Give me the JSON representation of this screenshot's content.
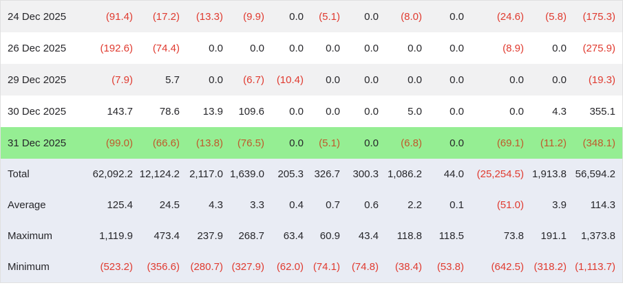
{
  "table": {
    "rows": [
      {
        "label": "24 Dec 2025",
        "row_type": "data",
        "highlighted": false,
        "values": [
          "(91.4)",
          "(17.2)",
          "(13.3)",
          "(9.9)",
          "0.0",
          "(5.1)",
          "0.0",
          "(8.0)",
          "0.0",
          "(24.6)",
          "(5.8)",
          "(175.3)"
        ]
      },
      {
        "label": "26 Dec 2025",
        "row_type": "data",
        "highlighted": false,
        "values": [
          "(192.6)",
          "(74.4)",
          "0.0",
          "0.0",
          "0.0",
          "0.0",
          "0.0",
          "0.0",
          "0.0",
          "(8.9)",
          "0.0",
          "(275.9)"
        ]
      },
      {
        "label": "29 Dec 2025",
        "row_type": "data",
        "highlighted": false,
        "values": [
          "(7.9)",
          "5.7",
          "0.0",
          "(6.7)",
          "(10.4)",
          "0.0",
          "0.0",
          "0.0",
          "0.0",
          "0.0",
          "0.0",
          "(19.3)"
        ]
      },
      {
        "label": "30 Dec 2025",
        "row_type": "data",
        "highlighted": false,
        "values": [
          "143.7",
          "78.6",
          "13.9",
          "109.6",
          "0.0",
          "0.0",
          "0.0",
          "5.0",
          "0.0",
          "0.0",
          "4.3",
          "355.1"
        ]
      },
      {
        "label": "31 Dec 2025",
        "row_type": "data",
        "highlighted": true,
        "values": [
          "(99.0)",
          "(66.6)",
          "(13.8)",
          "(76.5)",
          "0.0",
          "(5.1)",
          "0.0",
          "(6.8)",
          "0.0",
          "(69.1)",
          "(11.2)",
          "(348.1)"
        ]
      },
      {
        "label": "Total",
        "row_type": "summary",
        "highlighted": false,
        "values": [
          "62,092.2",
          "12,124.2",
          "2,117.0",
          "1,639.0",
          "205.3",
          "326.7",
          "300.3",
          "1,086.2",
          "44.0",
          "(25,254.5)",
          "1,913.8",
          "56,594.2"
        ]
      },
      {
        "label": "Average",
        "row_type": "summary",
        "highlighted": false,
        "values": [
          "125.4",
          "24.5",
          "4.3",
          "3.3",
          "0.4",
          "0.7",
          "0.6",
          "2.2",
          "0.1",
          "(51.0)",
          "3.9",
          "114.3"
        ]
      },
      {
        "label": "Maximum",
        "row_type": "summary",
        "highlighted": false,
        "values": [
          "1,119.9",
          "473.4",
          "237.9",
          "268.7",
          "63.4",
          "60.9",
          "43.4",
          "118.8",
          "118.5",
          "73.8",
          "191.1",
          "1,373.8"
        ]
      },
      {
        "label": "Minimum",
        "row_type": "summary",
        "highlighted": false,
        "values": [
          "(523.2)",
          "(356.6)",
          "(280.7)",
          "(327.9)",
          "(62.0)",
          "(74.1)",
          "(74.8)",
          "(38.4)",
          "(53.8)",
          "(642.5)",
          "(318.2)",
          "(1,113.7)"
        ]
      }
    ]
  },
  "colors": {
    "text": "#26262a",
    "negative_text": "#e03a2f",
    "negative_text_on_highlight": "#c0592b",
    "stripe_row_bg": "#f1f1f2",
    "plain_row_bg": "#ffffff",
    "highlight_row_bg": "#95ee93",
    "summary_block_bg": "#e9ecf4",
    "border": "#e0e0e0"
  },
  "chart_data": {
    "type": "table",
    "row_labels": [
      "24 Dec 2025",
      "26 Dec 2025",
      "29 Dec 2025",
      "30 Dec 2025",
      "31 Dec 2025",
      "Total",
      "Average",
      "Maximum",
      "Minimum"
    ],
    "highlighted_row": "31 Dec 2025",
    "negative_format": "parentheses-red",
    "rows": [
      [
        -91.4,
        -17.2,
        -13.3,
        -9.9,
        0.0,
        -5.1,
        0.0,
        -8.0,
        0.0,
        -24.6,
        -5.8,
        -175.3
      ],
      [
        -192.6,
        -74.4,
        0.0,
        0.0,
        0.0,
        0.0,
        0.0,
        0.0,
        0.0,
        -8.9,
        0.0,
        -275.9
      ],
      [
        -7.9,
        5.7,
        0.0,
        -6.7,
        -10.4,
        0.0,
        0.0,
        0.0,
        0.0,
        0.0,
        0.0,
        -19.3
      ],
      [
        143.7,
        78.6,
        13.9,
        109.6,
        0.0,
        0.0,
        0.0,
        5.0,
        0.0,
        0.0,
        4.3,
        355.1
      ],
      [
        -99.0,
        -66.6,
        -13.8,
        -76.5,
        0.0,
        -5.1,
        0.0,
        -6.8,
        0.0,
        -69.1,
        -11.2,
        -348.1
      ],
      [
        62092.2,
        12124.2,
        2117.0,
        1639.0,
        205.3,
        326.7,
        300.3,
        1086.2,
        44.0,
        -25254.5,
        1913.8,
        56594.2
      ],
      [
        125.4,
        24.5,
        4.3,
        3.3,
        0.4,
        0.7,
        0.6,
        2.2,
        0.1,
        -51.0,
        3.9,
        114.3
      ],
      [
        1119.9,
        473.4,
        237.9,
        268.7,
        63.4,
        60.9,
        43.4,
        118.8,
        118.5,
        73.8,
        191.1,
        1373.8
      ],
      [
        -523.2,
        -356.6,
        -280.7,
        -327.9,
        -62.0,
        -74.1,
        -74.8,
        -38.4,
        -53.8,
        -642.5,
        -318.2,
        -1113.7
      ]
    ]
  }
}
